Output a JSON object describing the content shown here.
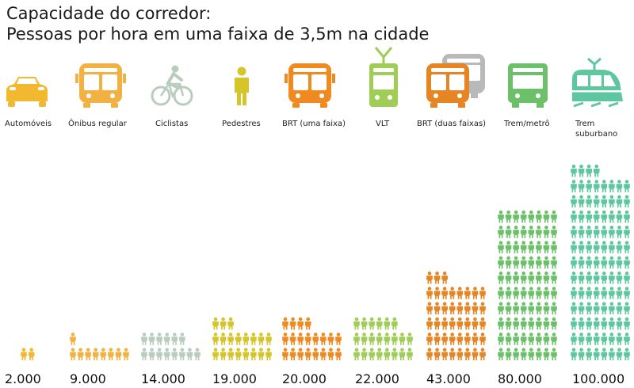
{
  "title_line1": "Capacidade do corredor:",
  "title_line2": "Pessoas por hora em uma faixa de 3,5m na cidade",
  "chart_data": {
    "type": "bar",
    "title": "Capacidade do corredor: Pessoas por hora em uma faixa de 3,5m na cidade",
    "representation": "pictogram of person icons",
    "categories": [
      "Automóveis",
      "Ônibus regular",
      "Ciclistas",
      "Pedestres",
      "BRT (uma faixa)",
      "VLT",
      "BRT (duas faixas)",
      "Trem/metrô",
      "Trem suburbano"
    ],
    "values": [
      2000,
      9000,
      14000,
      19000,
      20000,
      22000,
      43000,
      80000,
      100000
    ],
    "value_labels": [
      "2.000",
      "9.000",
      "14.000",
      "19.000",
      "20.000",
      "22.000",
      "43.000",
      "80.000",
      "100.000"
    ],
    "icons": [
      "car-icon",
      "bus-icon",
      "bicycle-icon",
      "pedestrian-icon",
      "bus-icon",
      "tram-icon",
      "double-bus-icon",
      "metro-icon",
      "train-icon"
    ],
    "colors": [
      "#f2b930",
      "#f2b243",
      "#b9cdbf",
      "#d6c42b",
      "#ee8a1f",
      "#9fcd55",
      "#e58524",
      "#6cc06a",
      "#5fc79f"
    ]
  }
}
